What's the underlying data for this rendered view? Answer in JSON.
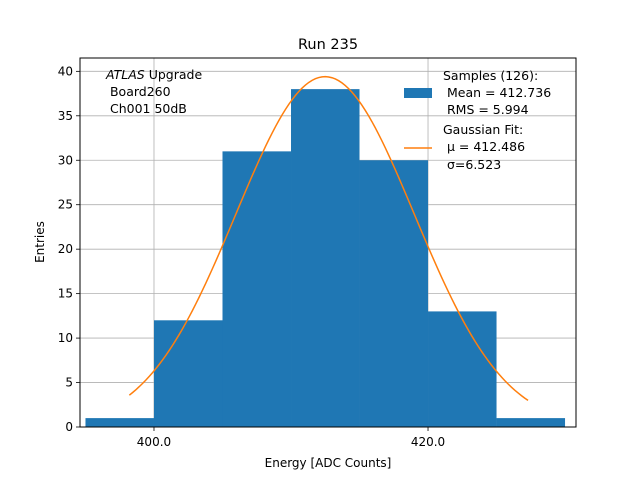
{
  "chart_data": {
    "type": "bar",
    "title": "Run 235",
    "xlabel": "Energy [ADC Counts]",
    "ylabel": "Entries",
    "xlim": [
      94.6,
      130.8
    ],
    "ylim": [
      0,
      41.5
    ],
    "xticks": [
      {
        "value": 100,
        "label": "400.0"
      },
      {
        "value": 120,
        "label": "420.0"
      }
    ],
    "yticks": [
      0,
      5,
      10,
      15,
      20,
      25,
      30,
      35,
      40
    ],
    "grid": true,
    "bins": [
      {
        "x0": 95,
        "x1": 100,
        "value": 1
      },
      {
        "x0": 100,
        "x1": 105,
        "value": 12
      },
      {
        "x0": 105,
        "x1": 110,
        "value": 31
      },
      {
        "x0": 110,
        "x1": 115,
        "value": 38
      },
      {
        "x0": 115,
        "x1": 120,
        "value": 30
      },
      {
        "x0": 120,
        "x1": 125,
        "value": 13
      },
      {
        "x0": 125,
        "x1": 130,
        "value": 1
      }
    ],
    "fit": {
      "name": "Gaussian Fit",
      "mu_display": 412.486,
      "sigma": 6.523,
      "mu_axis": 112.486,
      "amplitude": 39.4,
      "x_range": [
        98.2,
        127.3
      ]
    },
    "annotation_lines": [
      "ATLAS Upgrade",
      " Board260",
      " Ch001 50dB"
    ],
    "legend": {
      "position": "upper right",
      "samples": [
        "Samples (126):",
        " Mean = 412.736",
        " RMS = 5.994"
      ],
      "fit": [
        "Gaussian Fit:",
        " μ = 412.486",
        " σ=6.523"
      ]
    },
    "colors": {
      "bars": "#1f77b4",
      "fit": "#ff7f0e",
      "grid": "#b0b0b0"
    }
  }
}
